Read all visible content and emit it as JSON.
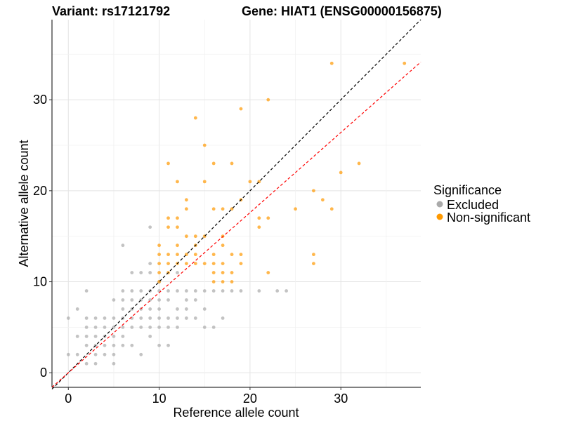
{
  "chart_data": {
    "type": "scatter",
    "title_left": "Variant: rs17121792",
    "title_right": "Gene: HIAT1 (ENSG00000156875)",
    "xlabel": "Reference allele count",
    "ylabel": "Alternative allele count",
    "xlim": [
      -1.8,
      38.8
    ],
    "ylim": [
      -1.6,
      38.8
    ],
    "xticks": [
      0,
      10,
      20,
      30
    ],
    "yticks": [
      0,
      10,
      20,
      30
    ],
    "grid": true,
    "legend": {
      "title": "Significance",
      "position": "right",
      "entries": [
        {
          "label": "Excluded",
          "color": "#aaaaaa"
        },
        {
          "label": "Non-significant",
          "color": "#ff9900"
        }
      ]
    },
    "reference_lines": [
      {
        "slope": 1.0,
        "intercept": 0,
        "color": "#000000",
        "style": "dashed"
      },
      {
        "slope": 0.88,
        "intercept": 0,
        "color": "#ff0000",
        "style": "dashed"
      }
    ],
    "series": [
      {
        "name": "Excluded",
        "color": "#aaaaaa",
        "points": [
          [
            0,
            6
          ],
          [
            0,
            2
          ],
          [
            1,
            7
          ],
          [
            1,
            4
          ],
          [
            1,
            2
          ],
          [
            2,
            9
          ],
          [
            2,
            6
          ],
          [
            2,
            5
          ],
          [
            2,
            4
          ],
          [
            2,
            3
          ],
          [
            2,
            1
          ],
          [
            3,
            6
          ],
          [
            3,
            5
          ],
          [
            3,
            4
          ],
          [
            3,
            3
          ],
          [
            3,
            2
          ],
          [
            3,
            1
          ],
          [
            4,
            6
          ],
          [
            4,
            5
          ],
          [
            4,
            4
          ],
          [
            4,
            3
          ],
          [
            4,
            2
          ],
          [
            5,
            8
          ],
          [
            5,
            6
          ],
          [
            5,
            5
          ],
          [
            5,
            4
          ],
          [
            5,
            3
          ],
          [
            5,
            2
          ],
          [
            5,
            1
          ],
          [
            6,
            14
          ],
          [
            6,
            9
          ],
          [
            6,
            8
          ],
          [
            6,
            7
          ],
          [
            6,
            6
          ],
          [
            6,
            5
          ],
          [
            6,
            4
          ],
          [
            6,
            3
          ],
          [
            7,
            11
          ],
          [
            7,
            9
          ],
          [
            7,
            8
          ],
          [
            7,
            7
          ],
          [
            7,
            6
          ],
          [
            7,
            5
          ],
          [
            7,
            3
          ],
          [
            8,
            11
          ],
          [
            8,
            9
          ],
          [
            8,
            8
          ],
          [
            8,
            7
          ],
          [
            8,
            6
          ],
          [
            8,
            5
          ],
          [
            8,
            2
          ],
          [
            9,
            16
          ],
          [
            9,
            12
          ],
          [
            9,
            11
          ],
          [
            9,
            9
          ],
          [
            9,
            8
          ],
          [
            9,
            7
          ],
          [
            9,
            6
          ],
          [
            9,
            5
          ],
          [
            9,
            4
          ],
          [
            10,
            10
          ],
          [
            10,
            9
          ],
          [
            10,
            8
          ],
          [
            10,
            7
          ],
          [
            10,
            6
          ],
          [
            10,
            5
          ],
          [
            10,
            3
          ],
          [
            11,
            9
          ],
          [
            11,
            8
          ],
          [
            11,
            6
          ],
          [
            11,
            5
          ],
          [
            11,
            3
          ],
          [
            12,
            11
          ],
          [
            12,
            9
          ],
          [
            12,
            7
          ],
          [
            12,
            6
          ],
          [
            12,
            5
          ],
          [
            13,
            9
          ],
          [
            13,
            8
          ],
          [
            13,
            7
          ],
          [
            13,
            6
          ],
          [
            14,
            9
          ],
          [
            14,
            8
          ],
          [
            14,
            6
          ],
          [
            15,
            9
          ],
          [
            15,
            7
          ],
          [
            15,
            5
          ],
          [
            16,
            9
          ],
          [
            16,
            5
          ],
          [
            17,
            9
          ],
          [
            17,
            6
          ],
          [
            18,
            9
          ],
          [
            19,
            9
          ],
          [
            21,
            9
          ],
          [
            23,
            9
          ],
          [
            24,
            9
          ]
        ]
      },
      {
        "name": "Non-significant",
        "color": "#ff9900",
        "points": [
          [
            10,
            14
          ],
          [
            10,
            13
          ],
          [
            10,
            12
          ],
          [
            10,
            11
          ],
          [
            10,
            10
          ],
          [
            11,
            23
          ],
          [
            11,
            17
          ],
          [
            11,
            16
          ],
          [
            11,
            13
          ],
          [
            11,
            12
          ],
          [
            11,
            11
          ],
          [
            12,
            21
          ],
          [
            12,
            17
          ],
          [
            12,
            16
          ],
          [
            12,
            14
          ],
          [
            12,
            13
          ],
          [
            12,
            12
          ],
          [
            13,
            19
          ],
          [
            13,
            18
          ],
          [
            13,
            15
          ],
          [
            13,
            13
          ],
          [
            13,
            12
          ],
          [
            14,
            28
          ],
          [
            14,
            15
          ],
          [
            14,
            14
          ],
          [
            14,
            13
          ],
          [
            14,
            12
          ],
          [
            15,
            25
          ],
          [
            15,
            21
          ],
          [
            15,
            15
          ],
          [
            15,
            12
          ],
          [
            16,
            23
          ],
          [
            16,
            18
          ],
          [
            16,
            13
          ],
          [
            16,
            12
          ],
          [
            16,
            11
          ],
          [
            16,
            10
          ],
          [
            17,
            18
          ],
          [
            17,
            15
          ],
          [
            17,
            14
          ],
          [
            17,
            12
          ],
          [
            17,
            11
          ],
          [
            17,
            10
          ],
          [
            18,
            23
          ],
          [
            18,
            18
          ],
          [
            18,
            13
          ],
          [
            18,
            11
          ],
          [
            18,
            10
          ],
          [
            19,
            29
          ],
          [
            19,
            19
          ],
          [
            19,
            13
          ],
          [
            19,
            12
          ],
          [
            20,
            21
          ],
          [
            21,
            21
          ],
          [
            21,
            17
          ],
          [
            21,
            16
          ],
          [
            22,
            30
          ],
          [
            22,
            17
          ],
          [
            22,
            11
          ],
          [
            25,
            18
          ],
          [
            27,
            20
          ],
          [
            27,
            13
          ],
          [
            27,
            12
          ],
          [
            28,
            19
          ],
          [
            29,
            34
          ],
          [
            29,
            18
          ],
          [
            30,
            22
          ],
          [
            32,
            23
          ],
          [
            37,
            34
          ]
        ]
      }
    ]
  }
}
